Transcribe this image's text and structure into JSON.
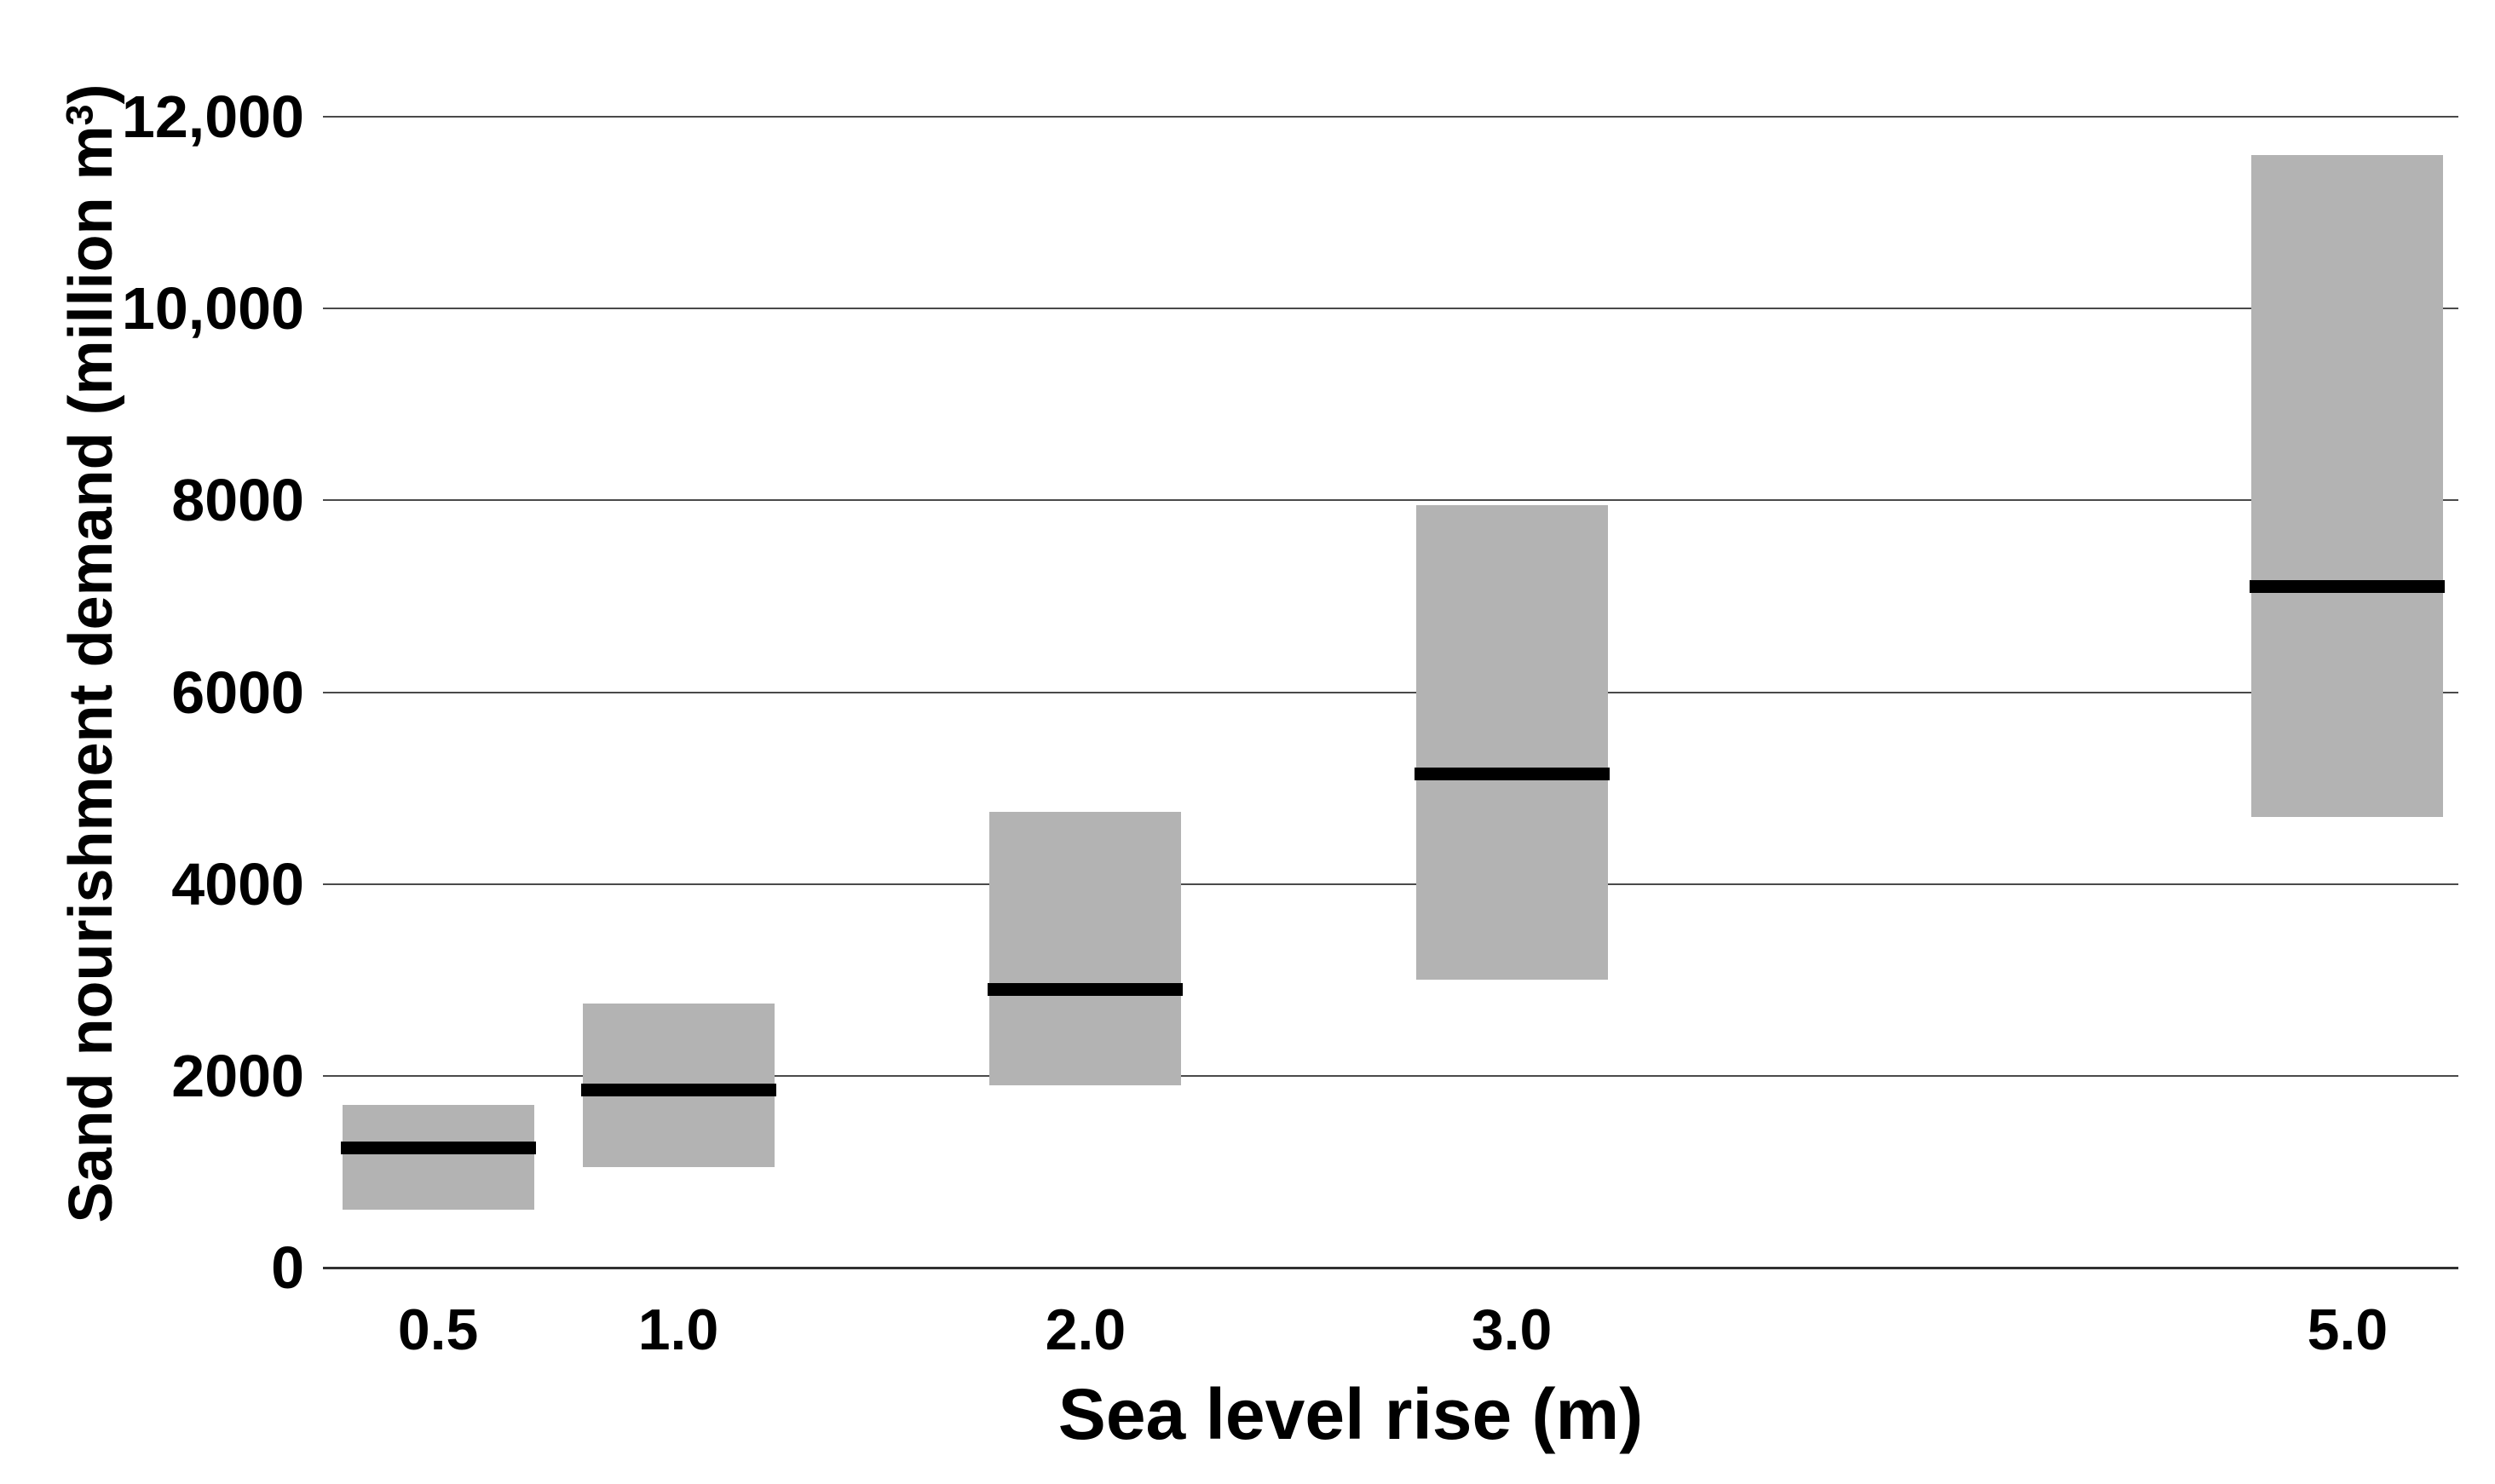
{
  "figure": {
    "y_axis_title_prefix": "Sand nourishment demand (million m",
    "y_axis_title_sup": "3",
    "y_axis_title_suffix": ")"
  },
  "chart_data": {
    "type": "bar",
    "subtype": "floating-range-bars-with-median-line",
    "title": "",
    "xlabel": "Sea level rise (m)",
    "ylabel": "Sand nourishment demand (million m³)",
    "units": "million m³",
    "categories": [
      "0.5",
      "1.0",
      "2.0",
      "3.0",
      "5.0"
    ],
    "bars": [
      {
        "x": 0.5,
        "label": "0.5",
        "min": 600,
        "median": 1250,
        "max": 1700
      },
      {
        "x": 1.0,
        "label": "1.0",
        "min": 1050,
        "median": 1850,
        "max": 2750
      },
      {
        "x": 2.0,
        "label": "2.0",
        "min": 1900,
        "median": 2900,
        "max": 4750
      },
      {
        "x": 3.0,
        "label": "3.0",
        "min": 3000,
        "median": 5150,
        "max": 7950
      },
      {
        "x": 5.0,
        "label": "5.0",
        "min": 4700,
        "median": 7100,
        "max": 11600
      }
    ],
    "y_ticks": [
      {
        "value": 0,
        "label": "0"
      },
      {
        "value": 2000,
        "label": "2000"
      },
      {
        "value": 4000,
        "label": "4000"
      },
      {
        "value": 6000,
        "label": "6000"
      },
      {
        "value": 8000,
        "label": "8000"
      },
      {
        "value": 10000,
        "label": "10,000"
      },
      {
        "value": 12000,
        "label": "12,000"
      }
    ],
    "xlim": [
      0.19,
      5.25
    ],
    "ylim": [
      0,
      12800
    ],
    "grid": true,
    "legend": false,
    "layout": {
      "bar_centers_frac": [
        0.0539,
        0.1664,
        0.3571,
        0.5567,
        0.9481
      ],
      "bar_width_frac": 0.0898,
      "median_thickness_px": 15
    },
    "colors": {
      "bar": "#b3b3b3",
      "median": "#000000",
      "gridline": "#4a4a4a",
      "axis_line": "#303030",
      "text": "#000000",
      "background": "#ffffff"
    }
  }
}
